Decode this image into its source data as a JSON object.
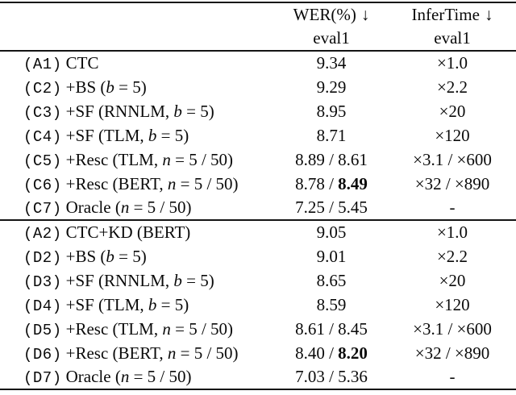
{
  "colors": {
    "background": "#ffffff",
    "text": "#0a0a0a",
    "rule": "#141414"
  },
  "table": {
    "header": {
      "wer": {
        "title": "WER(%)",
        "arrow": "↓",
        "subtitle": "eval1"
      },
      "infertime": {
        "title": "InferTime",
        "arrow": "↓",
        "subtitle": "eval1"
      }
    },
    "groups": [
      {
        "rows": [
          {
            "tag": "(A1)",
            "method": [
              {
                "text": "CTC"
              }
            ],
            "wer": [
              {
                "text": "9.34"
              }
            ],
            "infer": [
              {
                "text": "×1.0"
              }
            ]
          },
          {
            "tag": "(C2)",
            "method": [
              {
                "text": "+BS ("
              },
              {
                "text": "b",
                "italic": true
              },
              {
                "text": " = 5)"
              }
            ],
            "wer": [
              {
                "text": "9.29"
              }
            ],
            "infer": [
              {
                "text": "×2.2"
              }
            ]
          },
          {
            "tag": "(C3)",
            "method": [
              {
                "text": "+SF (RNNLM, "
              },
              {
                "text": "b",
                "italic": true
              },
              {
                "text": " = 5)"
              }
            ],
            "wer": [
              {
                "text": "8.95"
              }
            ],
            "infer": [
              {
                "text": "×20"
              }
            ]
          },
          {
            "tag": "(C4)",
            "method": [
              {
                "text": "+SF (TLM, "
              },
              {
                "text": "b",
                "italic": true
              },
              {
                "text": " = 5)"
              }
            ],
            "wer": [
              {
                "text": "8.71"
              }
            ],
            "infer": [
              {
                "text": "×120"
              }
            ]
          },
          {
            "tag": "(C5)",
            "method": [
              {
                "text": "+Resc (TLM, "
              },
              {
                "text": "n",
                "italic": true
              },
              {
                "text": " = 5 / 50)"
              }
            ],
            "wer": [
              {
                "text": "8.89 / 8.61"
              }
            ],
            "infer": [
              {
                "text": "×3.1 / ×600"
              }
            ]
          },
          {
            "tag": "(C6)",
            "method": [
              {
                "text": "+Resc (BERT, "
              },
              {
                "text": "n",
                "italic": true
              },
              {
                "text": " = 5 / 50)"
              }
            ],
            "wer": [
              {
                "text": "8.78 / "
              },
              {
                "text": "8.49",
                "bold": true
              }
            ],
            "infer": [
              {
                "text": "×32 / ×890"
              }
            ]
          },
          {
            "tag": "(C7)",
            "method": [
              {
                "text": "Oracle ("
              },
              {
                "text": "n",
                "italic": true
              },
              {
                "text": " = 5 / 50)"
              }
            ],
            "wer": [
              {
                "text": "7.25 / 5.45"
              }
            ],
            "infer": [
              {
                "text": "-"
              }
            ]
          }
        ]
      },
      {
        "rows": [
          {
            "tag": "(A2)",
            "method": [
              {
                "text": "CTC+KD (BERT)"
              }
            ],
            "wer": [
              {
                "text": "9.05"
              }
            ],
            "infer": [
              {
                "text": "×1.0"
              }
            ]
          },
          {
            "tag": "(D2)",
            "method": [
              {
                "text": "+BS ("
              },
              {
                "text": "b",
                "italic": true
              },
              {
                "text": " = 5)"
              }
            ],
            "wer": [
              {
                "text": "9.01"
              }
            ],
            "infer": [
              {
                "text": "×2.2"
              }
            ]
          },
          {
            "tag": "(D3)",
            "method": [
              {
                "text": "+SF (RNNLM, "
              },
              {
                "text": "b",
                "italic": true
              },
              {
                "text": " = 5)"
              }
            ],
            "wer": [
              {
                "text": "8.65"
              }
            ],
            "infer": [
              {
                "text": "×20"
              }
            ]
          },
          {
            "tag": "(D4)",
            "method": [
              {
                "text": "+SF (TLM, "
              },
              {
                "text": "b",
                "italic": true
              },
              {
                "text": " = 5)"
              }
            ],
            "wer": [
              {
                "text": "8.59"
              }
            ],
            "infer": [
              {
                "text": "×120"
              }
            ]
          },
          {
            "tag": "(D5)",
            "method": [
              {
                "text": "+Resc (TLM, "
              },
              {
                "text": "n",
                "italic": true
              },
              {
                "text": " = 5 / 50)"
              }
            ],
            "wer": [
              {
                "text": "8.61 / 8.45"
              }
            ],
            "infer": [
              {
                "text": "×3.1 / ×600"
              }
            ]
          },
          {
            "tag": "(D6)",
            "method": [
              {
                "text": "+Resc (BERT, "
              },
              {
                "text": "n",
                "italic": true
              },
              {
                "text": " = 5 / 50)"
              }
            ],
            "wer": [
              {
                "text": "8.40 / "
              },
              {
                "text": "8.20",
                "bold": true
              }
            ],
            "infer": [
              {
                "text": "×32 / ×890"
              }
            ]
          },
          {
            "tag": "(D7)",
            "method": [
              {
                "text": "Oracle ("
              },
              {
                "text": "n",
                "italic": true
              },
              {
                "text": " = 5 / 50)"
              }
            ],
            "wer": [
              {
                "text": "7.03 / 5.36"
              }
            ],
            "infer": [
              {
                "text": "-"
              }
            ]
          }
        ]
      }
    ]
  }
}
